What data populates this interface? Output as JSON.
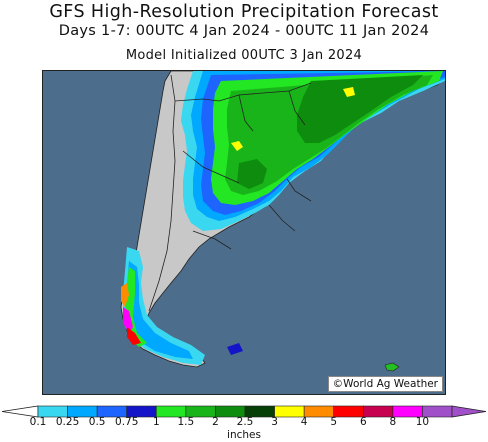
{
  "header": {
    "title": "GFS High-Resolution Precipitation Forecast",
    "subtitle": "Days 1-7: 00UTC 4 Jan 2024 - 00UTC 11 Jan 2024",
    "initialized": "Model Initialized 00UTC 3 Jan 2024"
  },
  "map": {
    "credit": "©World Ag Weather",
    "colors": {
      "ocean": "#4d6d8c",
      "land_dry": "#c8c8c8",
      "border": "#333333"
    }
  },
  "legend": {
    "units": "inches",
    "labels": [
      "0.1",
      "0.25",
      "0.5",
      "0.75",
      "1",
      "1.5",
      "2",
      "2.5",
      "3",
      "4",
      "5",
      "6",
      "8",
      "10"
    ],
    "colors": [
      "#3ad7f0",
      "#00a8ff",
      "#1e64ff",
      "#1414c8",
      "#22e722",
      "#19b419",
      "#0e8c0e",
      "#064006",
      "#ffff00",
      "#ff8c00",
      "#ff0000",
      "#c80050",
      "#ff00ff",
      "#a050c8"
    ]
  }
}
